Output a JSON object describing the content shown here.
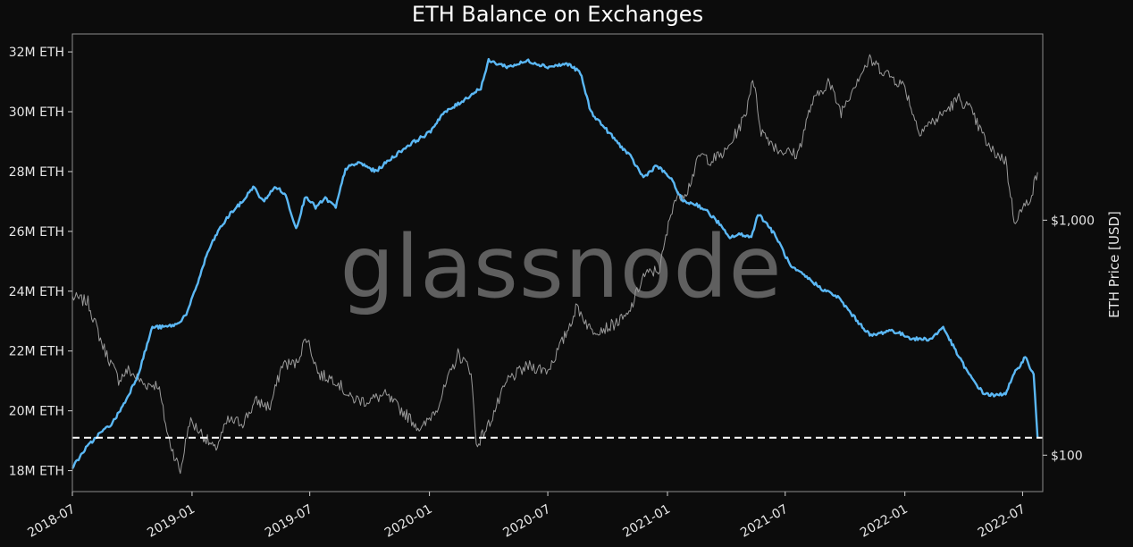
{
  "chart_data": {
    "type": "line",
    "title": "ETH Balance on Exchanges",
    "watermark": "glassnode",
    "x_ticks": [
      "2018-07",
      "2019-01",
      "2019-07",
      "2020-01",
      "2020-07",
      "2021-01",
      "2021-07",
      "2022-01",
      "2022-07"
    ],
    "x_range": [
      "2018-07",
      "2022-08"
    ],
    "y_left": {
      "ticks": [
        "18M ETH",
        "20M ETH",
        "22M ETH",
        "24M ETH",
        "26M ETH",
        "28M ETH",
        "30M ETH",
        "32M ETH"
      ],
      "range": [
        17.3,
        32.6
      ],
      "unit": "M ETH"
    },
    "y_right": {
      "label": "ETH Price [USD]",
      "scale": "log",
      "ticks": [
        "$100",
        "$1,000"
      ],
      "range": [
        70,
        6200
      ]
    },
    "grid": false,
    "reference_line": {
      "value": 19.1,
      "axis": "left",
      "style": "dashed",
      "color": "#ffffff"
    },
    "series": [
      {
        "axis": "left",
        "color": "#5bb8f5",
        "points": [
          [
            "2018-07-01",
            18.1
          ],
          [
            "2018-07-20",
            18.7
          ],
          [
            "2018-08-10",
            19.2
          ],
          [
            "2018-09-01",
            19.6
          ],
          [
            "2018-09-20",
            20.3
          ],
          [
            "2018-10-10",
            21.2
          ],
          [
            "2018-11-01",
            22.8
          ],
          [
            "2018-11-20",
            22.8
          ],
          [
            "2018-12-10",
            22.9
          ],
          [
            "2018-12-25",
            23.3
          ],
          [
            "2019-01-10",
            24.3
          ],
          [
            "2019-01-25",
            25.3
          ],
          [
            "2019-02-10",
            26.0
          ],
          [
            "2019-03-01",
            26.6
          ],
          [
            "2019-03-20",
            27.0
          ],
          [
            "2019-04-05",
            27.5
          ],
          [
            "2019-04-20",
            27.0
          ],
          [
            "2019-05-10",
            27.5
          ],
          [
            "2019-05-25",
            27.2
          ],
          [
            "2019-06-10",
            26.1
          ],
          [
            "2019-06-25",
            27.2
          ],
          [
            "2019-07-10",
            26.8
          ],
          [
            "2019-07-25",
            27.1
          ],
          [
            "2019-08-10",
            26.8
          ],
          [
            "2019-08-25",
            28.1
          ],
          [
            "2019-09-15",
            28.3
          ],
          [
            "2019-10-10",
            28.0
          ],
          [
            "2019-11-01",
            28.4
          ],
          [
            "2019-12-01",
            28.9
          ],
          [
            "2020-01-01",
            29.3
          ],
          [
            "2020-01-20",
            29.9
          ],
          [
            "2020-02-10",
            30.2
          ],
          [
            "2020-03-01",
            30.5
          ],
          [
            "2020-03-20",
            30.8
          ],
          [
            "2020-04-01",
            31.7
          ],
          [
            "2020-05-01",
            31.5
          ],
          [
            "2020-06-01",
            31.7
          ],
          [
            "2020-07-01",
            31.5
          ],
          [
            "2020-08-01",
            31.6
          ],
          [
            "2020-08-20",
            31.3
          ],
          [
            "2020-09-05",
            30.0
          ],
          [
            "2020-09-25",
            29.5
          ],
          [
            "2020-10-15",
            29.0
          ],
          [
            "2020-11-05",
            28.5
          ],
          [
            "2020-11-25",
            27.8
          ],
          [
            "2020-12-15",
            28.2
          ],
          [
            "2021-01-05",
            27.8
          ],
          [
            "2021-01-25",
            27.0
          ],
          [
            "2021-02-15",
            26.9
          ],
          [
            "2021-03-01",
            26.7
          ],
          [
            "2021-03-20",
            26.3
          ],
          [
            "2021-04-05",
            25.8
          ],
          [
            "2021-04-25",
            25.9
          ],
          [
            "2021-05-10",
            25.8
          ],
          [
            "2021-05-20",
            26.6
          ],
          [
            "2021-06-05",
            26.2
          ],
          [
            "2021-06-20",
            25.7
          ],
          [
            "2021-07-10",
            24.8
          ],
          [
            "2021-08-01",
            24.5
          ],
          [
            "2021-08-25",
            24.1
          ],
          [
            "2021-09-20",
            23.8
          ],
          [
            "2021-10-20",
            23.0
          ],
          [
            "2021-11-10",
            22.5
          ],
          [
            "2021-12-10",
            22.7
          ],
          [
            "2022-01-15",
            22.4
          ],
          [
            "2022-02-10",
            22.4
          ],
          [
            "2022-03-01",
            22.8
          ],
          [
            "2022-03-20",
            22.0
          ],
          [
            "2022-04-10",
            21.2
          ],
          [
            "2022-05-01",
            20.6
          ],
          [
            "2022-05-20",
            20.5
          ],
          [
            "2022-06-05",
            20.6
          ],
          [
            "2022-06-20",
            21.3
          ],
          [
            "2022-07-05",
            21.8
          ],
          [
            "2022-07-18",
            21.2
          ],
          [
            "2022-07-24",
            19.1
          ]
        ]
      },
      {
        "axis": "right",
        "color": "#9a9a9a",
        "points": [
          [
            "2018-07-01",
            470
          ],
          [
            "2018-07-25",
            450
          ],
          [
            "2018-08-15",
            300
          ],
          [
            "2018-09-10",
            210
          ],
          [
            "2018-09-25",
            230
          ],
          [
            "2018-10-20",
            200
          ],
          [
            "2018-11-10",
            200
          ],
          [
            "2018-11-25",
            120
          ],
          [
            "2018-12-14",
            85
          ],
          [
            "2018-12-28",
            140
          ],
          [
            "2019-01-15",
            125
          ],
          [
            "2019-02-05",
            105
          ],
          [
            "2019-02-25",
            140
          ],
          [
            "2019-03-20",
            138
          ],
          [
            "2019-04-10",
            170
          ],
          [
            "2019-05-01",
            160
          ],
          [
            "2019-05-20",
            245
          ],
          [
            "2019-06-10",
            245
          ],
          [
            "2019-06-26",
            320
          ],
          [
            "2019-07-15",
            220
          ],
          [
            "2019-08-10",
            210
          ],
          [
            "2019-09-01",
            175
          ],
          [
            "2019-09-25",
            170
          ],
          [
            "2019-10-25",
            180
          ],
          [
            "2019-11-25",
            150
          ],
          [
            "2019-12-20",
            128
          ],
          [
            "2020-01-15",
            165
          ],
          [
            "2020-02-14",
            270
          ],
          [
            "2020-03-05",
            230
          ],
          [
            "2020-03-13",
            110
          ],
          [
            "2020-04-01",
            135
          ],
          [
            "2020-05-01",
            210
          ],
          [
            "2020-06-01",
            240
          ],
          [
            "2020-07-01",
            230
          ],
          [
            "2020-07-25",
            310
          ],
          [
            "2020-08-15",
            430
          ],
          [
            "2020-09-05",
            340
          ],
          [
            "2020-10-01",
            350
          ],
          [
            "2020-11-01",
            390
          ],
          [
            "2020-11-25",
            580
          ],
          [
            "2020-12-20",
            620
          ],
          [
            "2021-01-10",
            1200
          ],
          [
            "2021-02-01",
            1350
          ],
          [
            "2021-02-20",
            1900
          ],
          [
            "2021-03-10",
            1800
          ],
          [
            "2021-04-01",
            1950
          ],
          [
            "2021-05-01",
            2800
          ],
          [
            "2021-05-12",
            4100
          ],
          [
            "2021-05-25",
            2400
          ],
          [
            "2021-06-20",
            2000
          ],
          [
            "2021-07-20",
            1900
          ],
          [
            "2021-08-10",
            3100
          ],
          [
            "2021-09-05",
            3900
          ],
          [
            "2021-09-25",
            2900
          ],
          [
            "2021-10-20",
            4000
          ],
          [
            "2021-11-08",
            4800
          ],
          [
            "2021-12-05",
            4200
          ],
          [
            "2022-01-01",
            3700
          ],
          [
            "2022-01-22",
            2400
          ],
          [
            "2022-02-20",
            2700
          ],
          [
            "2022-03-25",
            3300
          ],
          [
            "2022-04-10",
            3000
          ],
          [
            "2022-05-12",
            2000
          ],
          [
            "2022-06-05",
            1800
          ],
          [
            "2022-06-18",
            1000
          ],
          [
            "2022-07-05",
            1150
          ],
          [
            "2022-07-15",
            1300
          ],
          [
            "2022-07-24",
            1600
          ]
        ]
      }
    ]
  }
}
